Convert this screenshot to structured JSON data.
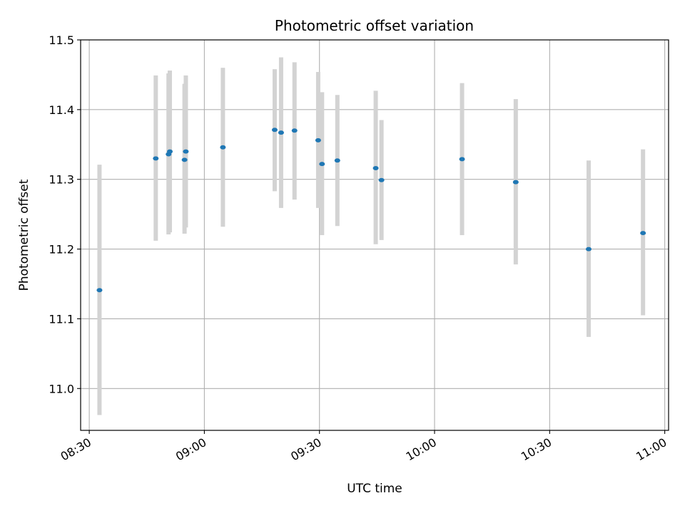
{
  "chart_data": {
    "type": "scatter",
    "title": "Photometric offset variation",
    "xlabel": "UTC time",
    "ylabel": "Photometric offset",
    "x_tick_labels": [
      "08:30",
      "09:00",
      "09:30",
      "10:00",
      "10:30",
      "11:00"
    ],
    "y_tick_labels": [
      "11.0",
      "11.1",
      "11.2",
      "11.3",
      "11.4",
      "11.5"
    ],
    "xlim": [
      "08:27:45",
      "11:01:00"
    ],
    "ylim": [
      10.94,
      11.5
    ],
    "grid": true,
    "point_color": "#1f77b4",
    "errorbar_color": "#d3d3d3",
    "series": [
      {
        "points": [
          {
            "x": "08:32:40",
            "y": 11.141,
            "ylow": 10.962,
            "yhigh": 11.321
          },
          {
            "x": "08:47:20",
            "y": 11.33,
            "ylow": 11.212,
            "yhigh": 11.449
          },
          {
            "x": "08:50:40",
            "y": 11.336,
            "ylow": 11.221,
            "yhigh": 11.452
          },
          {
            "x": "08:51:00",
            "y": 11.34,
            "ylow": 11.224,
            "yhigh": 11.456
          },
          {
            "x": "08:54:50",
            "y": 11.328,
            "ylow": 11.222,
            "yhigh": 11.437
          },
          {
            "x": "08:55:10",
            "y": 11.34,
            "ylow": 11.231,
            "yhigh": 11.449
          },
          {
            "x": "09:04:50",
            "y": 11.346,
            "ylow": 11.232,
            "yhigh": 11.46
          },
          {
            "x": "09:18:20",
            "y": 11.371,
            "ylow": 11.283,
            "yhigh": 11.458
          },
          {
            "x": "09:20:00",
            "y": 11.367,
            "ylow": 11.259,
            "yhigh": 11.475
          },
          {
            "x": "09:23:30",
            "y": 11.37,
            "ylow": 11.271,
            "yhigh": 11.468
          },
          {
            "x": "09:29:40",
            "y": 11.356,
            "ylow": 11.259,
            "yhigh": 11.454
          },
          {
            "x": "09:30:40",
            "y": 11.322,
            "ylow": 11.22,
            "yhigh": 11.425
          },
          {
            "x": "09:34:40",
            "y": 11.327,
            "ylow": 11.233,
            "yhigh": 11.421
          },
          {
            "x": "09:44:40",
            "y": 11.316,
            "ylow": 11.207,
            "yhigh": 11.427
          },
          {
            "x": "09:46:10",
            "y": 11.299,
            "ylow": 11.213,
            "yhigh": 11.385
          },
          {
            "x": "10:07:10",
            "y": 11.329,
            "ylow": 11.22,
            "yhigh": 11.438
          },
          {
            "x": "10:21:10",
            "y": 11.296,
            "ylow": 11.178,
            "yhigh": 11.415
          },
          {
            "x": "10:40:10",
            "y": 11.2,
            "ylow": 11.074,
            "yhigh": 11.327
          },
          {
            "x": "10:54:20",
            "y": 11.223,
            "ylow": 11.105,
            "yhigh": 11.343
          }
        ]
      }
    ]
  }
}
